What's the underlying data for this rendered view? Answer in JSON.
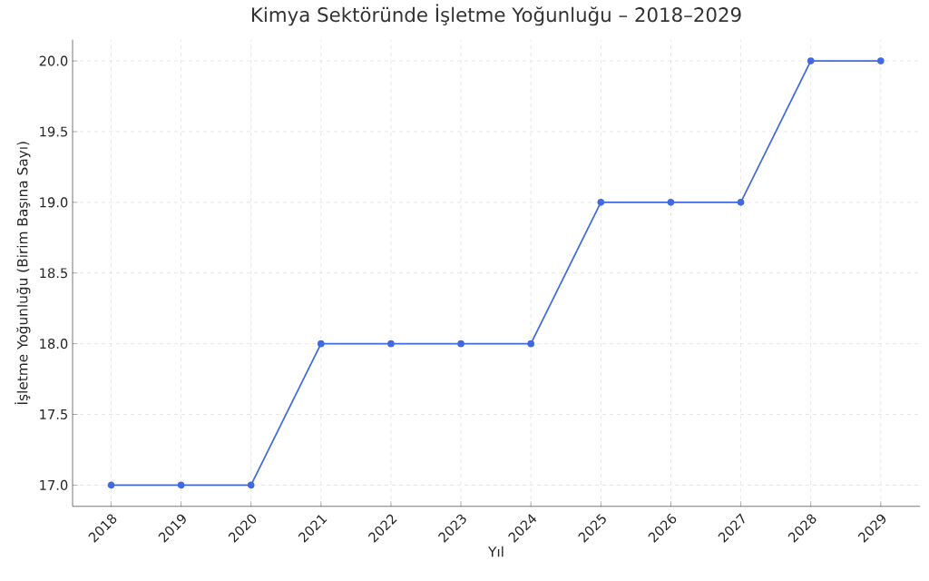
{
  "chart_data": {
    "type": "line",
    "title": "Kimya Sektöründe İşletme Yoğunluğu – 2018–2029",
    "xlabel": "Yıl",
    "ylabel": "İşletme Yoğunluğu (Birim Başına Sayı)",
    "categories": [
      "2018",
      "2019",
      "2020",
      "2021",
      "2022",
      "2023",
      "2024",
      "2025",
      "2026",
      "2027",
      "2028",
      "2029"
    ],
    "series": [
      {
        "color": "#4169e1",
        "values": [
          17,
          17,
          17,
          18,
          18,
          18,
          18,
          19,
          19,
          19,
          20,
          20
        ]
      }
    ],
    "ylim": [
      16.85,
      20.15
    ],
    "yticks": [
      {
        "value": 17,
        "label": "17.0"
      },
      {
        "value": 17.5,
        "label": "17.5"
      },
      {
        "value": 18,
        "label": "18.0"
      },
      {
        "value": 18.5,
        "label": "18.5"
      },
      {
        "value": 19,
        "label": "19.0"
      },
      {
        "value": 19.5,
        "label": "19.5"
      },
      {
        "value": 20,
        "label": "20.0"
      }
    ],
    "grid": true,
    "marker": "circle",
    "line_style": "solid"
  }
}
